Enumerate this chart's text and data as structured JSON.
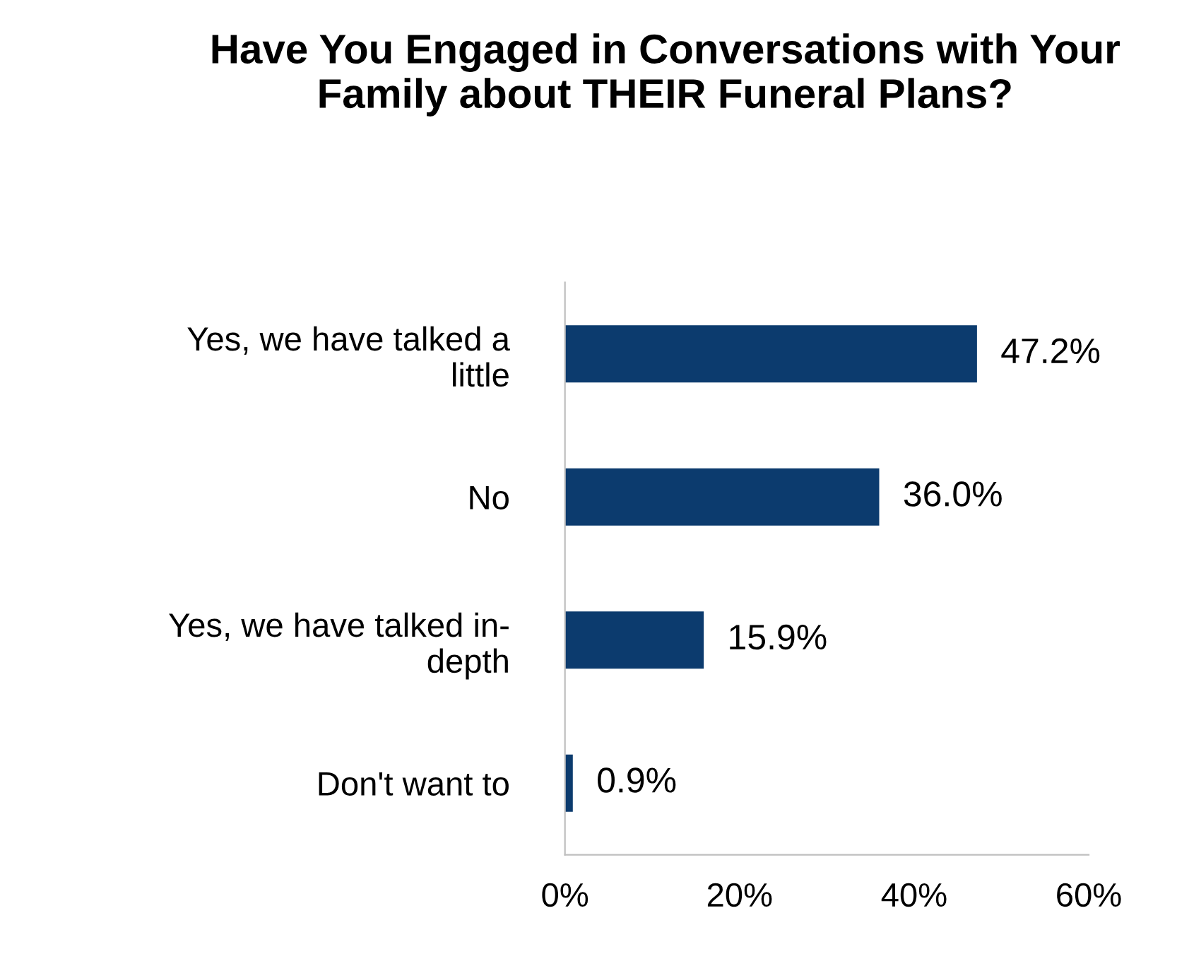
{
  "chart_data": {
    "type": "bar",
    "orientation": "horizontal",
    "title": "Have You Engaged in Conversations with Your Family about THEIR Funeral Plans?",
    "categories": [
      "Yes, we have talked a little",
      "No",
      "Yes, we have talked in-depth",
      "Don't want to"
    ],
    "values": [
      47.2,
      36.0,
      15.9,
      0.9
    ],
    "value_labels": [
      "47.2%",
      "36.0%",
      "15.9%",
      "0.9%"
    ],
    "color": "#0c3b6e",
    "xlim": [
      0,
      60
    ],
    "xticks": [
      {
        "value": 0,
        "label": "0%"
      },
      {
        "value": 20,
        "label": "20%"
      },
      {
        "value": 40,
        "label": "40%"
      },
      {
        "value": 60,
        "label": "60%"
      }
    ],
    "grid": false,
    "legend": false
  }
}
